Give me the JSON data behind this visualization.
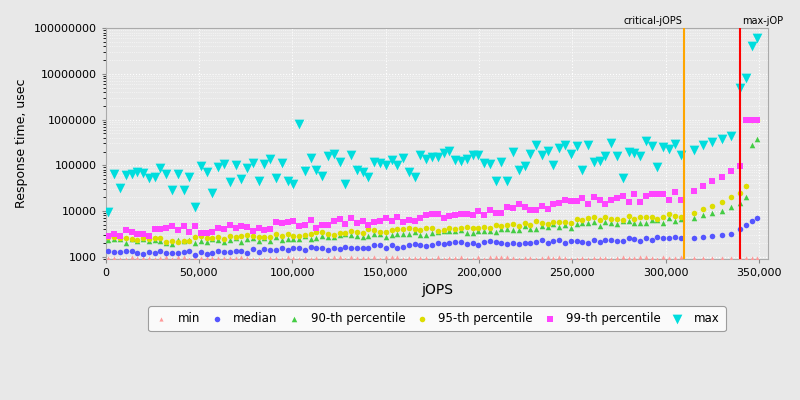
{
  "title": "",
  "xlabel": "jOPS",
  "ylabel": "Response time, usec",
  "ylim_log": [
    900,
    100000000
  ],
  "xlim": [
    0,
    355000
  ],
  "critical_jops": 310000,
  "max_jops": 340000,
  "background_color": "#e8e8e8",
  "plot_bg_color": "#e8e8e8",
  "grid_color": "#ffffff",
  "series": {
    "min": {
      "color": "#ff9999",
      "marker": "^",
      "markersize": 3,
      "label": "min"
    },
    "median": {
      "color": "#5555ff",
      "marker": "o",
      "markersize": 4,
      "label": "median"
    },
    "p90": {
      "color": "#44cc44",
      "marker": "^",
      "markersize": 4,
      "label": "90-th percentile"
    },
    "p95": {
      "color": "#dddd00",
      "marker": "o",
      "markersize": 4,
      "label": "95-th percentile"
    },
    "p99": {
      "color": "#ff44ff",
      "marker": "s",
      "markersize": 4,
      "label": "99-th percentile"
    },
    "max": {
      "color": "#00dddd",
      "marker": "v",
      "markersize": 7,
      "label": "max"
    }
  }
}
